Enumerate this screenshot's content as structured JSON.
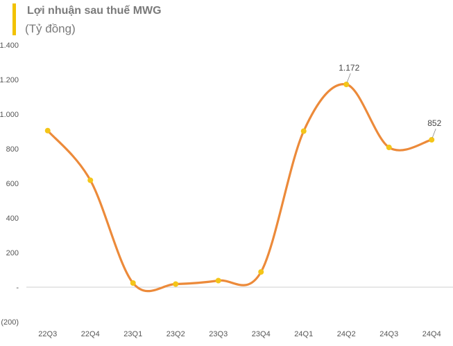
{
  "header": {
    "title": "Lợi nhuận sau thuế MWG",
    "subtitle": "(Tỷ đồng)"
  },
  "colors": {
    "line": "#ec8a3a",
    "marker": "#f4c518",
    "accent_bar": "#f2c200",
    "zero_line": "#cfcfcf"
  },
  "chart_data": {
    "type": "line",
    "title": "Lợi nhuận sau thuế MWG",
    "ylabel": "(Tỷ đồng)",
    "categories": [
      "22Q3",
      "22Q4",
      "23Q1",
      "23Q2",
      "23Q3",
      "23Q4",
      "24Q1",
      "24Q2",
      "24Q3",
      "24Q4"
    ],
    "series": [
      {
        "values": [
          905,
          618,
          24,
          18,
          38,
          88,
          902,
          1172,
          808,
          852
        ]
      }
    ],
    "ylim": [
      -200,
      1400
    ],
    "yticks": [
      {
        "value": 1400,
        "label": "1.400"
      },
      {
        "value": 1200,
        "label": "1.200"
      },
      {
        "value": 1000,
        "label": "1.000"
      },
      {
        "value": 800,
        "label": "800"
      },
      {
        "value": 600,
        "label": "600"
      },
      {
        "value": 400,
        "label": "400"
      },
      {
        "value": 200,
        "label": "200"
      },
      {
        "value": 0,
        "label": "-"
      },
      {
        "value": -200,
        "label": "(200)"
      }
    ],
    "data_labels": [
      {
        "index": 7,
        "text": "1.172"
      },
      {
        "index": 9,
        "text": "852"
      }
    ],
    "grid": false,
    "smooth": true
  }
}
